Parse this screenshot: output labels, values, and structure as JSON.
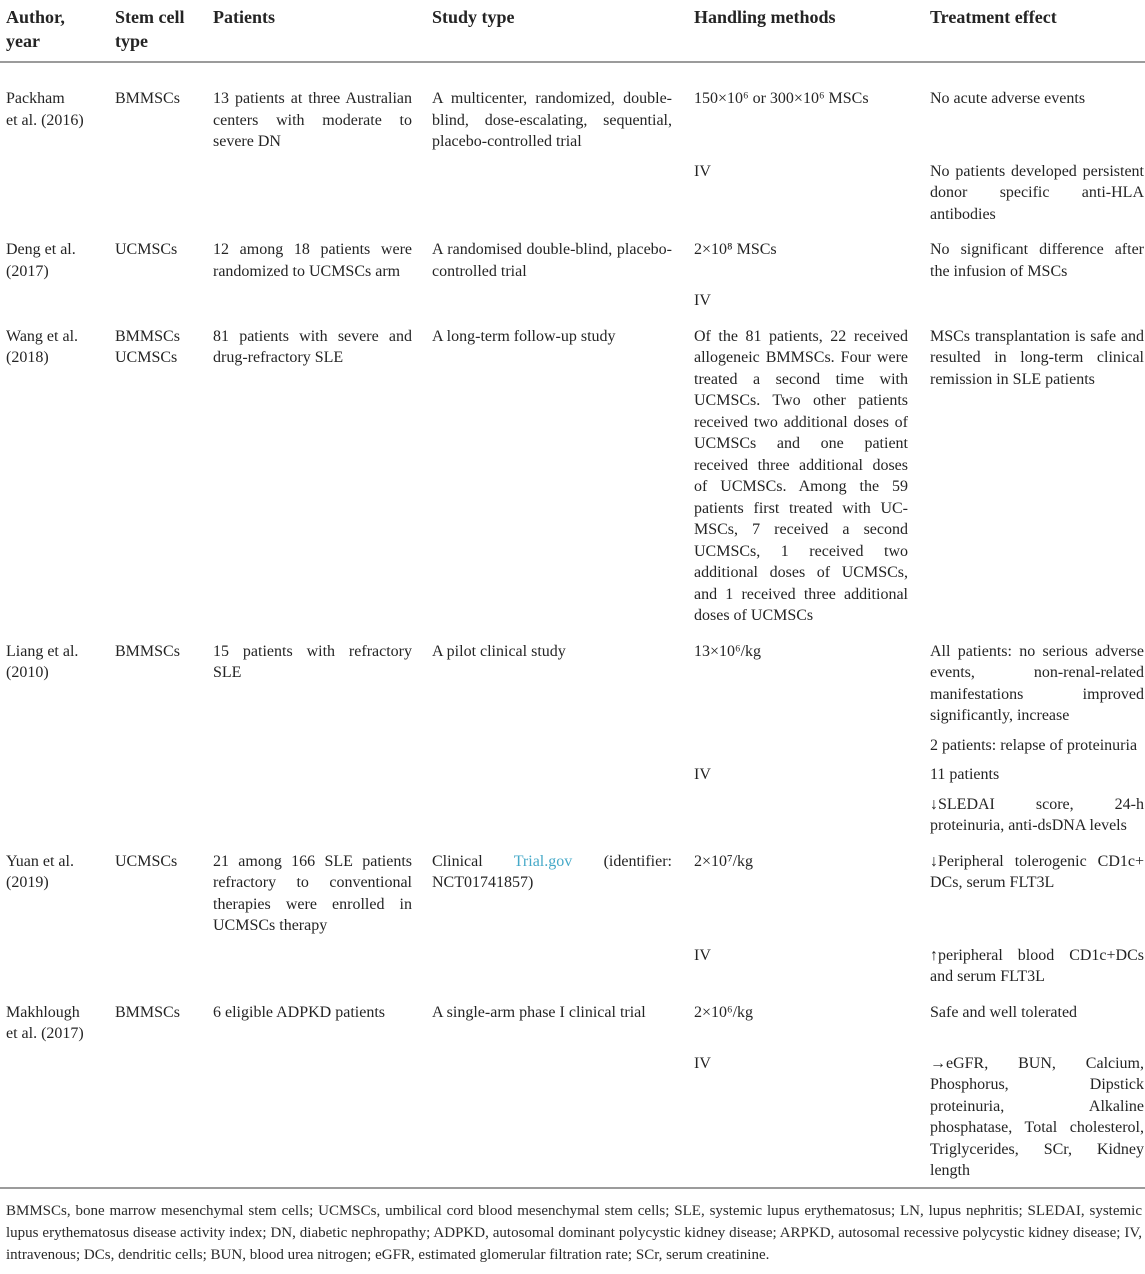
{
  "table": {
    "columns": [
      "Author,\nyear",
      "Stem cell\ntype",
      "Patients",
      "Study type",
      "Handling methods",
      "Treatment effect"
    ],
    "rows": [
      {
        "author": "Packham\net al. (2016)",
        "stem_cell_type": "BMMSCs",
        "patients": "13 patients at three Australian centers with moderate to severe DN",
        "study_type": [
          {
            "text": "A multicenter, randomized, double-blind, dose-escalating, sequential, placebo-controlled trial"
          }
        ],
        "subrows": [
          {
            "handling": "150×10⁶ or 300×10⁶ MSCs",
            "treatment": [
              "No acute adverse events"
            ]
          },
          {
            "handling": "IV",
            "treatment": [
              "No patients developed persistent donor specific anti-HLA antibodies"
            ]
          }
        ]
      },
      {
        "author": "Deng et al.\n(2017)",
        "stem_cell_type": "UCMSCs",
        "patients": "12 among 18 patients were randomized to UCMSCs arm",
        "study_type": [
          {
            "text": "A randomised double-blind, placebo-controlled trial"
          }
        ],
        "subrows": [
          {
            "handling": "2×10⁸ MSCs",
            "treatment": [
              "No significant difference after the infusion of MSCs"
            ]
          },
          {
            "handling": "IV",
            "treatment": []
          }
        ]
      },
      {
        "author": "Wang et al.\n(2018)",
        "stem_cell_type": "BMMSCs\nUCMSCs",
        "patients": "81 patients with severe and drug-refractory SLE",
        "study_type": [
          {
            "text": "A long-term follow-up study"
          }
        ],
        "subrows": [
          {
            "handling": "Of the 81 patients, 22 received allogeneic BMMSCs. Four were treated a second time with UCMSCs. Two other patients received two additional doses of UCMSCs and one patient received three additional doses of UCMSCs. Among the 59 patients first treated with UC-MSCs, 7 received a second UCMSCs, 1 received two additional doses of UCMSCs, and 1 received three additional doses of UCMSCs",
            "treatment": [
              "MSCs transplantation is safe and resulted in long-term clinical remission in SLE patients"
            ]
          }
        ]
      },
      {
        "author": "Liang et al.\n(2010)",
        "stem_cell_type": "BMMSCs",
        "patients": "15 patients with refractory SLE",
        "study_type": [
          {
            "text": "A pilot clinical study"
          }
        ],
        "subrows": [
          {
            "handling": "13×10⁶/kg",
            "treatment": [
              "All patients: no serious adverse events, non-renal-related manifestations improved significantly, increase",
              "2 patients: relapse of proteinuria"
            ]
          },
          {
            "handling": "IV",
            "treatment": [
              "11 patients",
              "↓SLEDAI score, 24-h proteinuria, anti-dsDNA levels"
            ]
          }
        ]
      },
      {
        "author": "Yuan et al.\n(2019)",
        "stem_cell_type": "UCMSCs",
        "patients": "21 among 166 SLE patients refractory to conventional therapies were enrolled in UCMSCs therapy",
        "study_type": [
          {
            "text": "Clinical "
          },
          {
            "text": "Trial.gov",
            "link": true
          },
          {
            "text": " (identifier: NCT01741857)"
          }
        ],
        "subrows": [
          {
            "handling": "2×10⁷/kg",
            "treatment": [
              "↓Peripheral tolerogenic CD1c+ DCs, serum FLT3L"
            ]
          },
          {
            "handling": "IV",
            "treatment": [
              "↑peripheral blood CD1c+DCs and serum FLT3L"
            ]
          }
        ]
      },
      {
        "author": "Makhlough\net al. (2017)",
        "stem_cell_type": "BMMSCs",
        "patients": "6 eligible ADPKD patients",
        "study_type": [
          {
            "text": "A single-arm phase I clinical trial"
          }
        ],
        "subrows": [
          {
            "handling": "2×10⁶/kg",
            "treatment": [
              "Safe and well tolerated"
            ]
          },
          {
            "handling": "IV",
            "treatment": [
              "→eGFR, BUN, Calcium, Phosphorus, Dipstick proteinuria, Alkaline phosphatase, Total cholesterol, Triglycerides, SCr, Kidney length"
            ]
          }
        ]
      }
    ]
  },
  "footnote": "BMMSCs, bone marrow mesenchymal stem cells; UCMSCs, umbilical cord blood mesenchymal stem cells; SLE, systemic lupus erythematosus; LN, lupus nephritis; SLEDAI, systemic lupus erythematosus disease activity index; DN, diabetic nephropathy; ADPKD, autosomal dominant polycystic kidney disease; ARPKD, autosomal recessive polycystic kidney disease; IV, intravenous; DCs, dendritic cells; BUN, blood urea nitrogen; eGFR, estimated glomerular filtration rate; SCr, serum creatinine.",
  "colors": {
    "link": "#45a9c8",
    "text": "#242424",
    "rule": "#9b9b9b"
  }
}
